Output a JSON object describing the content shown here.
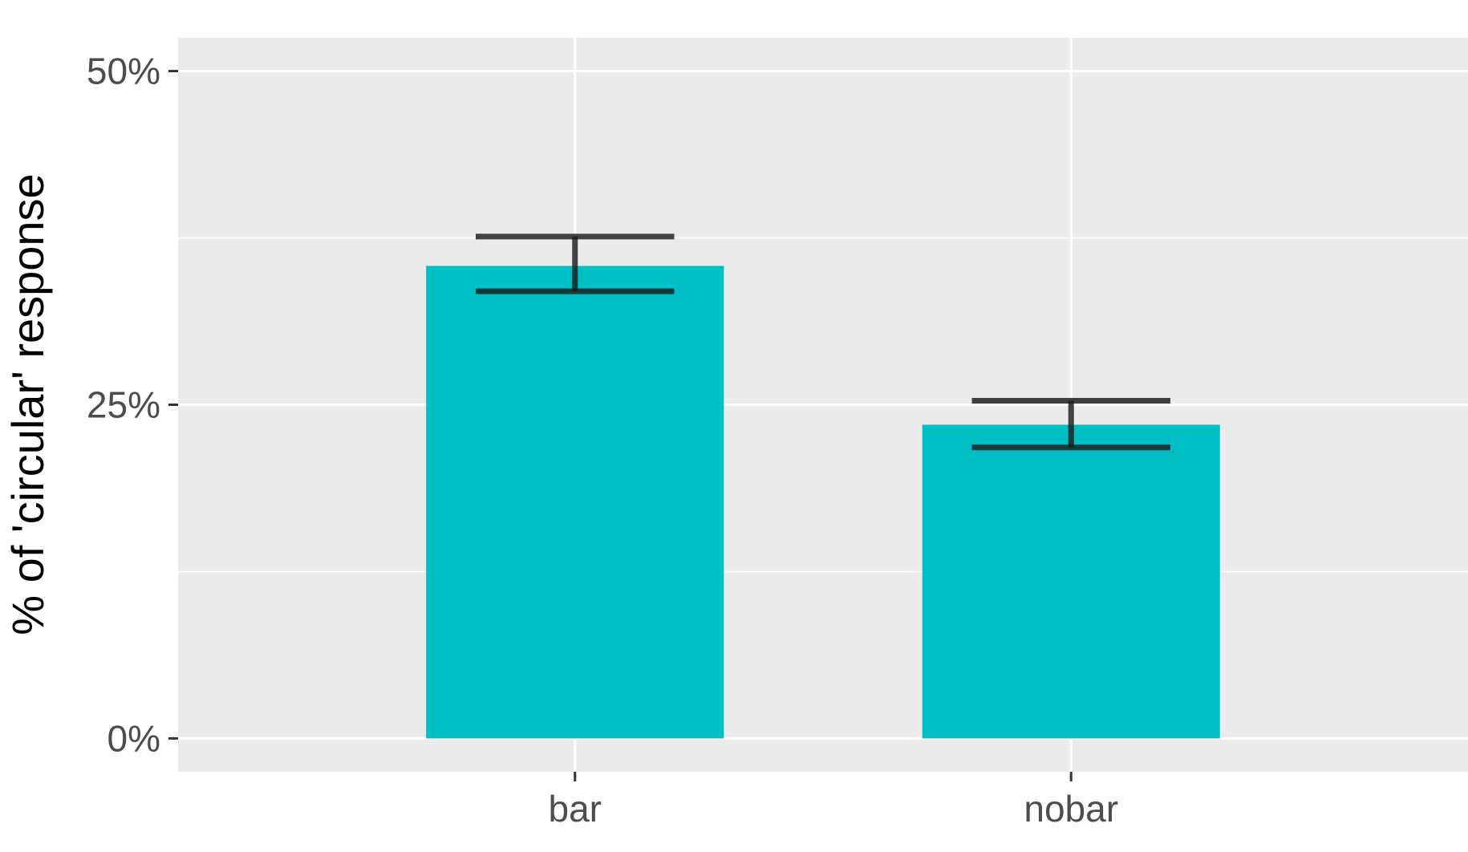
{
  "chart_data": {
    "type": "bar",
    "title": "",
    "xlabel": "",
    "ylabel": "% of 'circular' response",
    "categories": [
      "bar",
      "nobar"
    ],
    "values": [
      35.4,
      23.5
    ],
    "error_bars": [
      {
        "lower": 33.5,
        "upper": 37.6
      },
      {
        "lower": 21.8,
        "upper": 25.3
      }
    ],
    "ylim": [
      -2.5,
      52.5
    ],
    "yticks": [
      0,
      25,
      50
    ],
    "ytick_labels": [
      "0%",
      "25%",
      "50%"
    ],
    "grid": true,
    "legend": "none",
    "colors": {
      "bar_fill": "#00BFC4",
      "error_bar": "#1a1a1a",
      "panel_background": "#EBEBEB",
      "grid": "#ffffff"
    }
  }
}
